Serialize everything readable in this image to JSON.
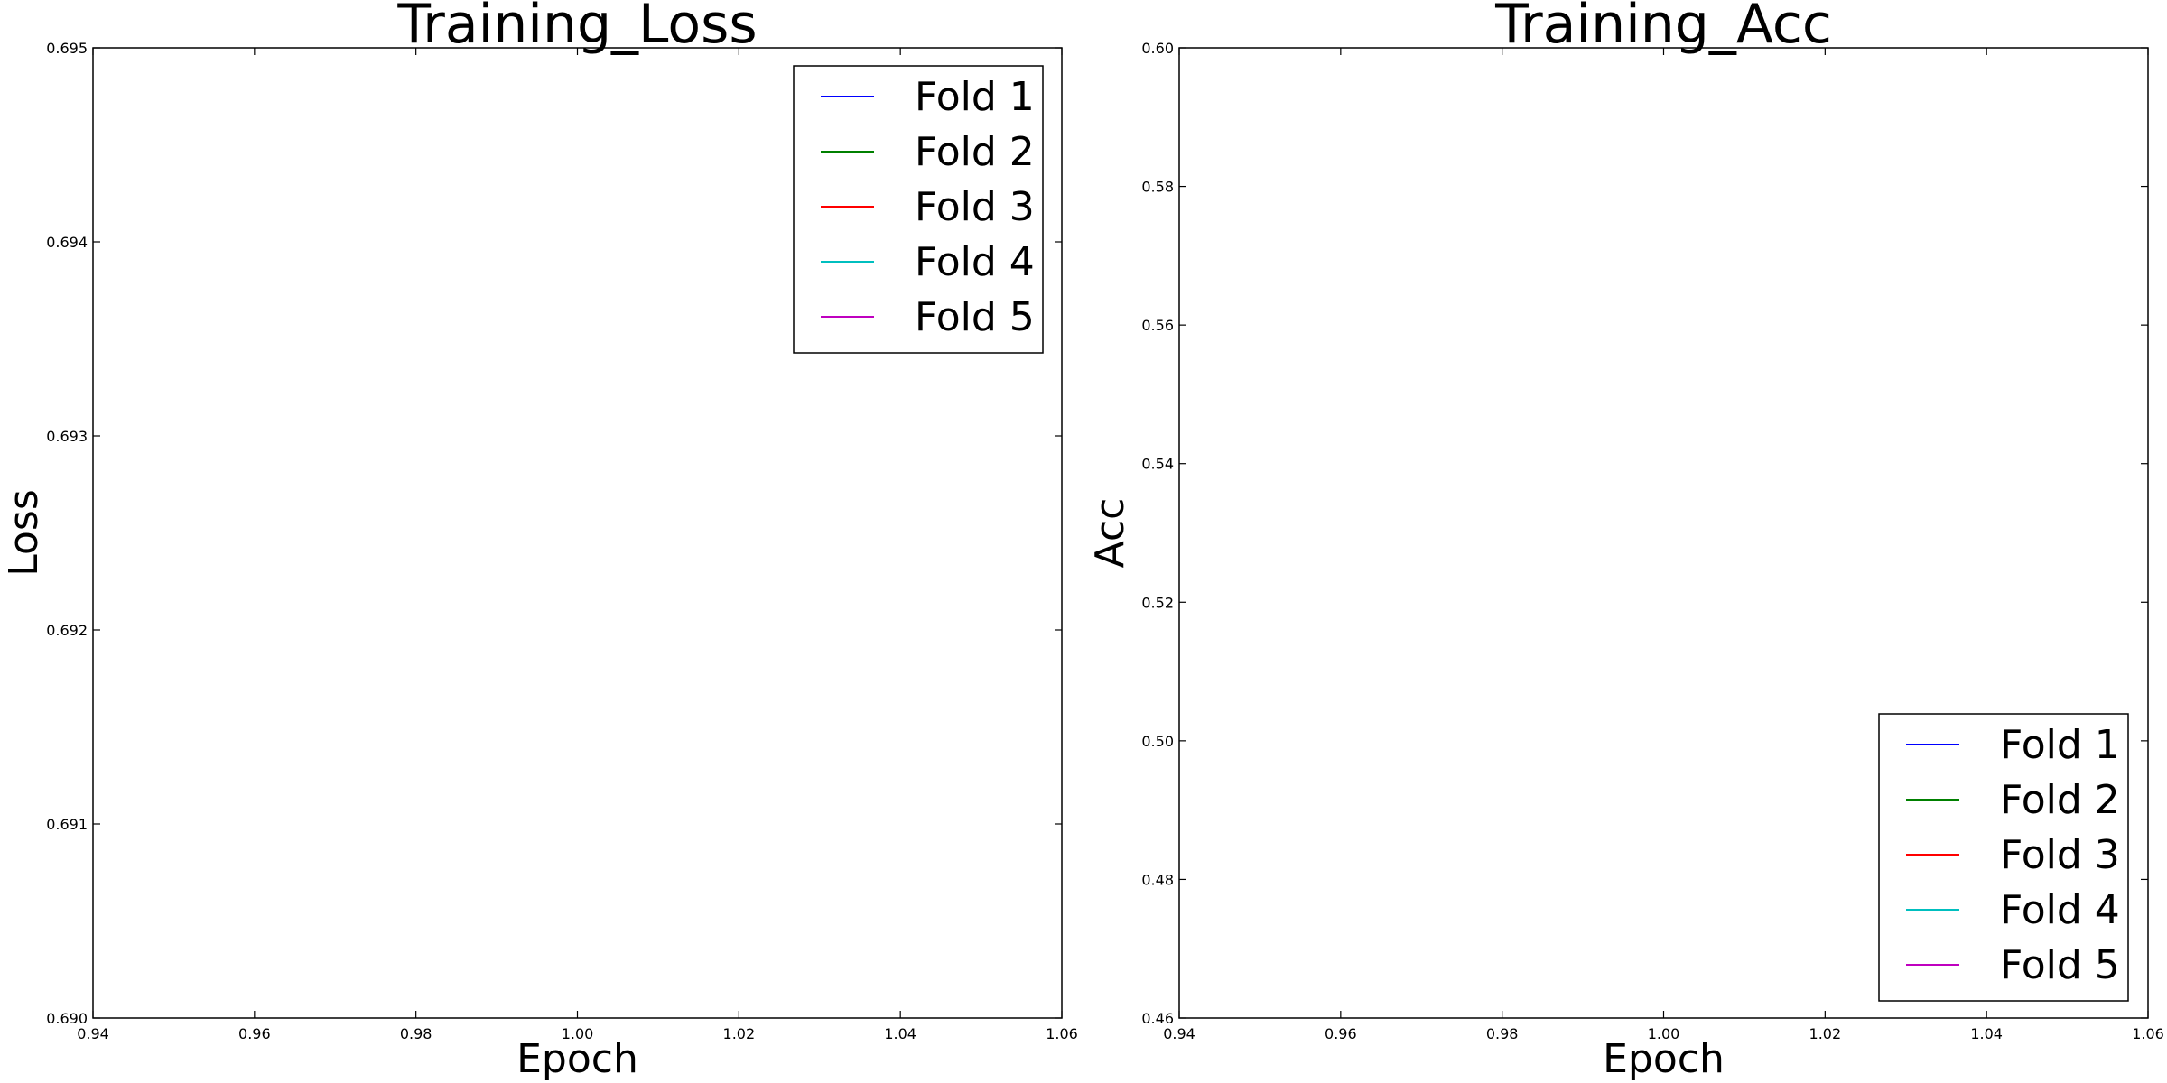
{
  "chart_data": [
    {
      "type": "line",
      "title": "Training_Loss",
      "xlabel": "Epoch",
      "ylabel": "Loss",
      "xlim": [
        0.94,
        1.06
      ],
      "ylim": [
        0.69,
        0.695
      ],
      "x_ticks": [
        "0.94",
        "0.96",
        "0.98",
        "1.00",
        "1.02",
        "1.04",
        "1.06"
      ],
      "y_ticks": [
        "0.690",
        "0.691",
        "0.692",
        "0.693",
        "0.694",
        "0.695"
      ],
      "grid": false,
      "legend_position": "top-right",
      "series": [
        {
          "name": "Fold 1",
          "color": "#0000ff",
          "x": [],
          "y": []
        },
        {
          "name": "Fold 2",
          "color": "#008000",
          "x": [],
          "y": []
        },
        {
          "name": "Fold 3",
          "color": "#ff0000",
          "x": [],
          "y": []
        },
        {
          "name": "Fold 4",
          "color": "#00bfbf",
          "x": [],
          "y": []
        },
        {
          "name": "Fold 5",
          "color": "#bf00bf",
          "x": [],
          "y": []
        }
      ]
    },
    {
      "type": "line",
      "title": "Training_Acc",
      "xlabel": "Epoch",
      "ylabel": "Acc",
      "xlim": [
        0.94,
        1.06
      ],
      "ylim": [
        0.46,
        0.6
      ],
      "x_ticks": [
        "0.94",
        "0.96",
        "0.98",
        "1.00",
        "1.02",
        "1.04",
        "1.06"
      ],
      "y_ticks": [
        "0.46",
        "0.48",
        "0.50",
        "0.52",
        "0.54",
        "0.56",
        "0.58",
        "0.60"
      ],
      "grid": false,
      "legend_position": "bottom-right",
      "series": [
        {
          "name": "Fold 1",
          "color": "#0000ff",
          "x": [],
          "y": []
        },
        {
          "name": "Fold 2",
          "color": "#008000",
          "x": [],
          "y": []
        },
        {
          "name": "Fold 3",
          "color": "#ff0000",
          "x": [],
          "y": []
        },
        {
          "name": "Fold 4",
          "color": "#00bfbf",
          "x": [],
          "y": []
        },
        {
          "name": "Fold 5",
          "color": "#bf00bf",
          "x": [],
          "y": []
        }
      ]
    }
  ]
}
